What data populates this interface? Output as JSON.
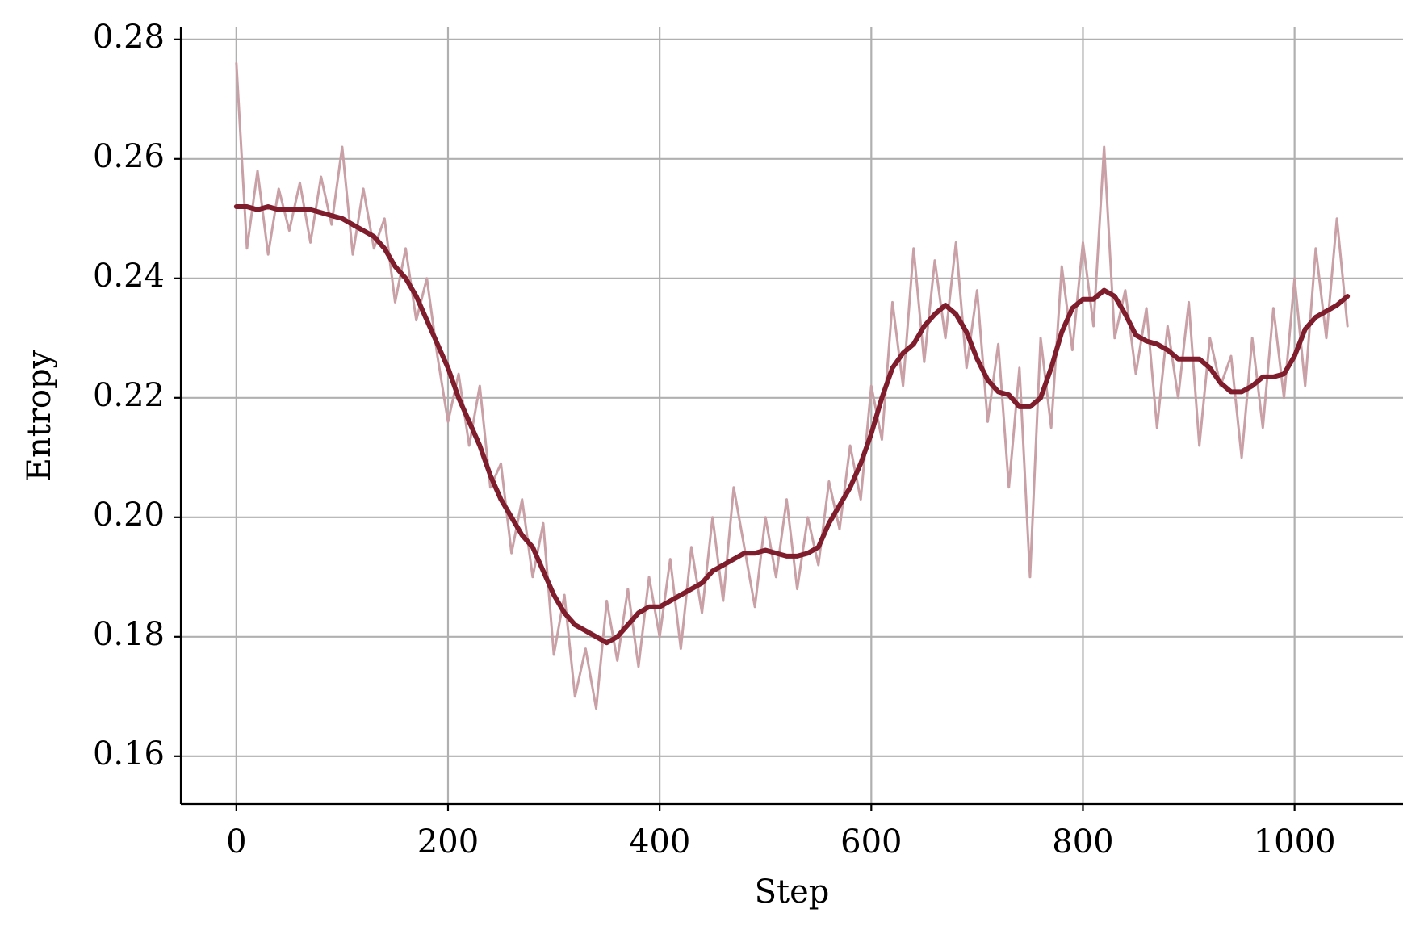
{
  "chart_data": {
    "type": "line",
    "x_label": "Step",
    "y_label": "Entropy",
    "x": [
      0,
      10,
      20,
      30,
      40,
      50,
      60,
      70,
      80,
      90,
      100,
      110,
      120,
      130,
      140,
      150,
      160,
      170,
      180,
      190,
      200,
      210,
      220,
      230,
      240,
      250,
      260,
      270,
      280,
      290,
      300,
      310,
      320,
      330,
      340,
      350,
      360,
      370,
      380,
      390,
      400,
      410,
      420,
      430,
      440,
      450,
      460,
      470,
      480,
      490,
      500,
      510,
      520,
      530,
      540,
      550,
      560,
      570,
      580,
      590,
      600,
      610,
      620,
      630,
      640,
      650,
      660,
      670,
      680,
      690,
      700,
      710,
      720,
      730,
      740,
      750,
      760,
      770,
      780,
      790,
      800,
      810,
      820,
      830,
      840,
      850,
      860,
      870,
      880,
      890,
      900,
      910,
      920,
      930,
      940,
      950,
      960,
      970,
      980,
      990,
      1000,
      1010,
      1020,
      1030,
      1040,
      1050
    ],
    "series": [
      {
        "color": "#c9a0a6",
        "width": 3,
        "values": [
          0.276,
          0.245,
          0.258,
          0.244,
          0.255,
          0.248,
          0.256,
          0.246,
          0.257,
          0.249,
          0.262,
          0.244,
          0.255,
          0.245,
          0.25,
          0.236,
          0.245,
          0.233,
          0.24,
          0.227,
          0.216,
          0.224,
          0.212,
          0.222,
          0.205,
          0.209,
          0.194,
          0.203,
          0.19,
          0.199,
          0.177,
          0.187,
          0.17,
          0.178,
          0.168,
          0.186,
          0.176,
          0.188,
          0.175,
          0.19,
          0.18,
          0.193,
          0.178,
          0.195,
          0.184,
          0.2,
          0.186,
          0.205,
          0.195,
          0.185,
          0.2,
          0.19,
          0.203,
          0.188,
          0.2,
          0.192,
          0.206,
          0.198,
          0.212,
          0.203,
          0.222,
          0.213,
          0.236,
          0.222,
          0.245,
          0.226,
          0.243,
          0.23,
          0.246,
          0.225,
          0.238,
          0.216,
          0.229,
          0.205,
          0.225,
          0.19,
          0.23,
          0.215,
          0.242,
          0.228,
          0.246,
          0.232,
          0.262,
          0.23,
          0.238,
          0.224,
          0.235,
          0.215,
          0.232,
          0.22,
          0.236,
          0.212,
          0.23,
          0.222,
          0.227,
          0.21,
          0.23,
          0.215,
          0.235,
          0.22,
          0.24,
          0.222,
          0.245,
          0.23,
          0.25,
          0.232
        ]
      },
      {
        "color": "#7f1d2c",
        "width": 6,
        "values": [
          0.252,
          0.252,
          0.2515,
          0.252,
          0.2515,
          0.2515,
          0.2515,
          0.2515,
          0.251,
          0.2505,
          0.25,
          0.249,
          0.248,
          0.247,
          0.245,
          0.242,
          0.24,
          0.237,
          0.233,
          0.229,
          0.225,
          0.22,
          0.216,
          0.212,
          0.207,
          0.203,
          0.2,
          0.197,
          0.195,
          0.191,
          0.187,
          0.184,
          0.182,
          0.181,
          0.18,
          0.179,
          0.18,
          0.182,
          0.184,
          0.185,
          0.185,
          0.186,
          0.187,
          0.188,
          0.189,
          0.191,
          0.192,
          0.193,
          0.194,
          0.194,
          0.1945,
          0.194,
          0.1935,
          0.1935,
          0.194,
          0.195,
          0.199,
          0.202,
          0.205,
          0.209,
          0.214,
          0.22,
          0.225,
          0.2275,
          0.229,
          0.232,
          0.234,
          0.2355,
          0.234,
          0.231,
          0.2265,
          0.223,
          0.221,
          0.2205,
          0.2185,
          0.2185,
          0.22,
          0.225,
          0.231,
          0.235,
          0.2365,
          0.2365,
          0.238,
          0.237,
          0.234,
          0.2305,
          0.2295,
          0.229,
          0.228,
          0.2265,
          0.2265,
          0.2265,
          0.225,
          0.2225,
          0.221,
          0.221,
          0.222,
          0.2235,
          0.2235,
          0.224,
          0.227,
          0.2315,
          0.2335,
          0.2345,
          0.2355,
          0.237
        ]
      }
    ],
    "xlim": [
      -52.5,
      1102.5
    ],
    "ylim": [
      0.152,
      0.282
    ],
    "xticks": [
      0,
      200,
      400,
      600,
      800,
      1000
    ],
    "yticks": [
      0.16,
      0.18,
      {
        "value": 0.2,
        "label": "0.20"
      },
      0.22,
      0.24,
      0.26,
      0.28
    ],
    "grid": true
  }
}
